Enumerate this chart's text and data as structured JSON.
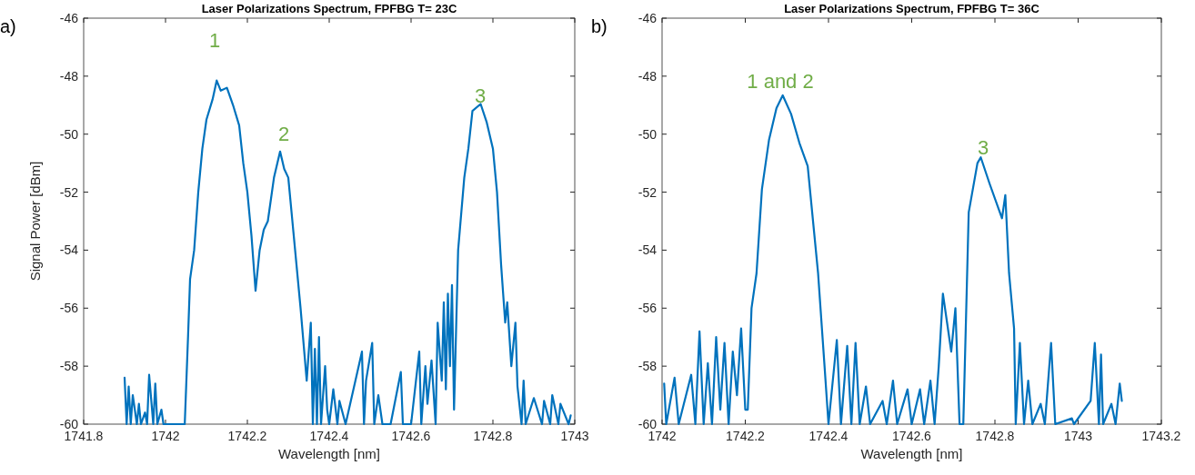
{
  "chart_data": [
    {
      "type": "line",
      "title": "Laser Polarizations Spectrum, FPFBG T= 23C",
      "xlabel": "Wavelength [nm]",
      "ylabel": "Signal Power [dBm]",
      "xlim": [
        1741.8,
        1743
      ],
      "xticks": [
        1741.8,
        1742,
        1742.2,
        1742.4,
        1742.6,
        1742.8,
        1743
      ],
      "ylim": [
        -60,
        -46
      ],
      "yticks": [
        -60,
        -58,
        -56,
        -54,
        -52,
        -50,
        -48,
        -46
      ],
      "grid": false,
      "annotations": [
        "a)",
        "1",
        "2",
        "3"
      ],
      "x": [
        1741.9,
        1741.905,
        1741.91,
        1741.915,
        1741.92,
        1741.93,
        1741.935,
        1741.94,
        1741.95,
        1741.955,
        1741.96,
        1741.97,
        1741.975,
        1741.98,
        1741.99,
        1741.995,
        1742,
        1742.01,
        1742.03,
        1742.035,
        1742.04,
        1742.047,
        1742.055,
        1742.06,
        1742.07,
        1742.08,
        1742.09,
        1742.1,
        1742.115,
        1742.125,
        1742.135,
        1742.15,
        1742.165,
        1742.18,
        1742.19,
        1742.2,
        1742.21,
        1742.22,
        1742.23,
        1742.24,
        1742.25,
        1742.265,
        1742.28,
        1742.29,
        1742.3,
        1742.31,
        1742.32,
        1742.33,
        1742.345,
        1742.355,
        1742.36,
        1742.365,
        1742.37,
        1742.375,
        1742.38,
        1742.39,
        1742.395,
        1742.4,
        1742.41,
        1742.42,
        1742.425,
        1742.44,
        1742.48,
        1742.485,
        1742.49,
        1742.505,
        1742.51,
        1742.52,
        1742.53,
        1742.55,
        1742.575,
        1742.58,
        1742.6,
        1742.62,
        1742.625,
        1742.635,
        1742.64,
        1742.65,
        1742.66,
        1742.665,
        1742.675,
        1742.68,
        1742.685,
        1742.69,
        1742.695,
        1742.7,
        1742.705,
        1742.715,
        1742.73,
        1742.74,
        1742.75,
        1742.77,
        1742.785,
        1742.8,
        1742.81,
        1742.82,
        1742.83,
        1742.835,
        1742.845,
        1742.855,
        1742.86,
        1742.87,
        1742.875,
        1742.88,
        1742.9,
        1742.92,
        1742.925,
        1742.94,
        1742.945,
        1742.96,
        1742.965,
        1742.985,
        1742.99
      ],
      "series": [
        {
          "color": "#0072bd",
          "values": [
            -58.4,
            -60,
            -58.7,
            -60,
            -59,
            -60,
            -59.3,
            -60,
            -59.6,
            -60,
            -58.3,
            -60,
            -58.6,
            -60,
            -59.5,
            -60,
            -60,
            -60,
            -60,
            -60,
            -60,
            -60,
            -57,
            -55,
            -54,
            -52,
            -50.5,
            -49.5,
            -48.8,
            -48.15,
            -48.5,
            -48.4,
            -49,
            -49.7,
            -51,
            -52,
            -53.5,
            -55.4,
            -54,
            -53.3,
            -53,
            -51.5,
            -50.6,
            -51.2,
            -51.5,
            -53,
            -54.5,
            -56,
            -58.5,
            -56.5,
            -60,
            -57.4,
            -60,
            -57,
            -60,
            -58,
            -59.5,
            -60,
            -58.8,
            -60,
            -59.2,
            -60,
            -57.5,
            -60,
            -58.5,
            -57.2,
            -60,
            -59,
            -60,
            -60,
            -58.2,
            -60,
            -60,
            -57.5,
            -60,
            -58,
            -59.3,
            -57.8,
            -60,
            -56.5,
            -58.5,
            -55.8,
            -58.8,
            -55.5,
            -58,
            -55.2,
            -59.5,
            -54,
            -51.5,
            -50.5,
            -49.2,
            -48.96,
            -49.6,
            -50.5,
            -52,
            -54.5,
            -56.5,
            -55.8,
            -58,
            -56.5,
            -58.7,
            -60,
            -58.5,
            -60,
            -59.1,
            -60,
            -59.2,
            -60,
            -59,
            -60,
            -59.3,
            -60,
            -59.7
          ]
        }
      ]
    },
    {
      "type": "line",
      "title": "Laser Polarizations Spectrum, FPFBG T= 36C",
      "xlabel": "Wavelength [nm]",
      "xlim": [
        1742,
        1743.2
      ],
      "xticks": [
        1742,
        1742.2,
        1742.4,
        1742.6,
        1742.8,
        1743,
        1743.2
      ],
      "ylim": [
        -60,
        -46
      ],
      "yticks": [
        -60,
        -58,
        -56,
        -54,
        -52,
        -50,
        -48,
        -46
      ],
      "grid": false,
      "annotations": [
        "b)",
        "1 and 2",
        "3"
      ],
      "x": [
        1742.005,
        1742.01,
        1742.03,
        1742.04,
        1742.07,
        1742.08,
        1742.09,
        1742.1,
        1742.11,
        1742.12,
        1742.13,
        1742.14,
        1742.15,
        1742.16,
        1742.17,
        1742.18,
        1742.19,
        1742.2,
        1742.206,
        1742.215,
        1742.227,
        1742.24,
        1742.257,
        1742.275,
        1742.29,
        1742.31,
        1742.33,
        1742.35,
        1742.375,
        1742.39,
        1742.4,
        1742.42,
        1742.43,
        1742.445,
        1742.455,
        1742.465,
        1742.475,
        1742.49,
        1742.5,
        1742.53,
        1742.54,
        1742.555,
        1742.565,
        1742.59,
        1742.6,
        1742.62,
        1742.63,
        1742.645,
        1742.655,
        1742.665,
        1742.675,
        1742.685,
        1742.695,
        1742.705,
        1742.715,
        1742.724,
        1742.737,
        1742.758,
        1742.766,
        1742.787,
        1742.817,
        1742.825,
        1742.834,
        1742.846,
        1742.85,
        1742.86,
        1742.87,
        1742.88,
        1742.89,
        1742.91,
        1742.92,
        1742.935,
        1742.945,
        1742.985,
        1742.99,
        1743.03,
        1743.04,
        1743.05,
        1743.055,
        1743.06,
        1743.08,
        1743.09,
        1743.1,
        1743.105
      ],
      "series": [
        {
          "color": "#0072bd",
          "values": [
            -58.6,
            -60,
            -58.4,
            -60,
            -58.3,
            -60,
            -56.8,
            -60,
            -57.9,
            -60,
            -57,
            -59.5,
            -57.2,
            -60,
            -57.5,
            -59,
            -56.7,
            -59.5,
            -59.5,
            -56,
            -54.8,
            -51.9,
            -50.2,
            -49.1,
            -48.66,
            -49.3,
            -50.3,
            -51.1,
            -54.8,
            -57.9,
            -60,
            -57.1,
            -60,
            -57.3,
            -60,
            -57.2,
            -60,
            -58.7,
            -60,
            -59.2,
            -60,
            -58.5,
            -60,
            -58.8,
            -60,
            -58.8,
            -60,
            -58.5,
            -60,
            -58,
            -55.5,
            -56.5,
            -57.5,
            -56,
            -60,
            -60,
            -52.7,
            -51,
            -50.8,
            -51.7,
            -52.9,
            -52.1,
            -54.8,
            -56.7,
            -60,
            -57.2,
            -60,
            -58.5,
            -60,
            -59.3,
            -60,
            -57.2,
            -60,
            -59.8,
            -60,
            -59.2,
            -57.2,
            -60,
            -57.6,
            -60,
            -59.3,
            -60,
            -58.6,
            -59.2
          ]
        }
      ]
    }
  ]
}
